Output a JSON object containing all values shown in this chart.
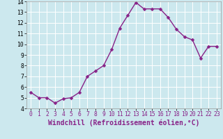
{
  "x": [
    0,
    1,
    2,
    3,
    4,
    5,
    6,
    7,
    8,
    9,
    10,
    11,
    12,
    13,
    14,
    15,
    16,
    17,
    18,
    19,
    20,
    21,
    22,
    23
  ],
  "y": [
    5.5,
    5.0,
    5.0,
    4.5,
    4.9,
    5.0,
    5.5,
    7.0,
    7.5,
    8.0,
    9.5,
    11.5,
    12.7,
    13.9,
    13.3,
    13.3,
    13.3,
    12.5,
    11.4,
    10.7,
    10.4,
    8.7,
    9.8,
    9.8
  ],
  "line_color": "#882288",
  "marker_color": "#882288",
  "bg_color": "#cce8ee",
  "grid_color": "#ffffff",
  "xlabel": "Windchill (Refroidissement éolien,°C)",
  "xlabel_color": "#882288",
  "ylim": [
    4,
    14
  ],
  "xlim_min": -0.5,
  "xlim_max": 23.5,
  "yticks": [
    4,
    5,
    6,
    7,
    8,
    9,
    10,
    11,
    12,
    13,
    14
  ],
  "xticks": [
    0,
    1,
    2,
    3,
    4,
    5,
    6,
    7,
    8,
    9,
    10,
    11,
    12,
    13,
    14,
    15,
    16,
    17,
    18,
    19,
    20,
    21,
    22,
    23
  ],
  "tick_fontsize": 5.8,
  "xlabel_fontsize": 7.0,
  "marker_size": 2.5,
  "line_width": 1.0
}
